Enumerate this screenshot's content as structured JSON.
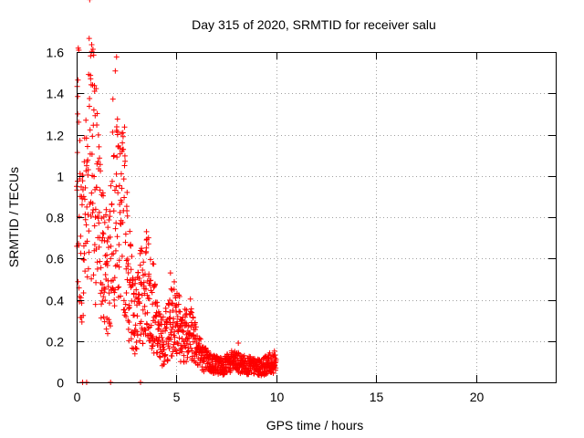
{
  "chart_data": {
    "type": "scatter",
    "title": "Day 315 of 2020, SRMTID for receiver salu",
    "xlabel": "GPS time / hours",
    "ylabel": "SRMTID / TECUs",
    "xlim": [
      0,
      24
    ],
    "ylim": [
      0,
      1.6
    ],
    "xticks": [
      0,
      5,
      10,
      15,
      20
    ],
    "xtick_labels": [
      "0",
      "5",
      "10",
      "15",
      "20"
    ],
    "yticks": [
      0,
      0.2,
      0.4,
      0.6,
      0.8,
      1,
      1.2,
      1.4,
      1.6
    ],
    "ytick_labels": [
      "0",
      "0.2",
      "0.4",
      "0.6",
      "0.8",
      "1",
      "1.2",
      "1.4",
      "1.6"
    ],
    "grid": true,
    "marker": "plus",
    "color": "#ff0000",
    "series": [
      {
        "name": "SRMTID",
        "envelope": [
          [
            0.0,
            0.85
          ],
          [
            0.1,
            1.05
          ],
          [
            0.2,
            0.62
          ],
          [
            0.35,
            0.75
          ],
          [
            0.5,
            0.95
          ],
          [
            0.7,
            1.3
          ],
          [
            0.85,
            1.1
          ],
          [
            1.0,
            0.85
          ],
          [
            1.2,
            0.7
          ],
          [
            1.4,
            0.55
          ],
          [
            1.6,
            0.5
          ],
          [
            1.8,
            0.85
          ],
          [
            2.0,
            1.0
          ],
          [
            2.2,
            0.75
          ],
          [
            2.4,
            0.8
          ],
          [
            2.6,
            0.5
          ],
          [
            2.8,
            0.38
          ],
          [
            3.0,
            0.3
          ],
          [
            3.2,
            0.4
          ],
          [
            3.5,
            0.45
          ],
          [
            3.8,
            0.4
          ],
          [
            4.0,
            0.25
          ],
          [
            4.3,
            0.2
          ],
          [
            4.6,
            0.25
          ],
          [
            5.0,
            0.35
          ],
          [
            5.3,
            0.2
          ],
          [
            5.6,
            0.28
          ],
          [
            6.0,
            0.2
          ],
          [
            6.3,
            0.12
          ],
          [
            6.8,
            0.09
          ],
          [
            7.3,
            0.08
          ],
          [
            7.8,
            0.1
          ],
          [
            8.2,
            0.09
          ],
          [
            8.7,
            0.08
          ],
          [
            9.2,
            0.07
          ],
          [
            9.6,
            0.09
          ],
          [
            10.0,
            0.1
          ]
        ],
        "peaks": [
          [
            0.05,
            1.3
          ],
          [
            0.1,
            1.26
          ],
          [
            0.7,
            1.47
          ],
          [
            0.8,
            1.44
          ],
          [
            0.9,
            1.41
          ],
          [
            2.0,
            1.22
          ],
          [
            2.05,
            1.2
          ],
          [
            2.4,
            1.05
          ],
          [
            3.5,
            0.73
          ],
          [
            3.6,
            0.7
          ],
          [
            4.7,
            0.53
          ],
          [
            5.5,
            0.35
          ],
          [
            8.1,
            0.19
          ]
        ],
        "zero_points": [
          0.3,
          0.5,
          1.7,
          3.2
        ]
      }
    ]
  }
}
